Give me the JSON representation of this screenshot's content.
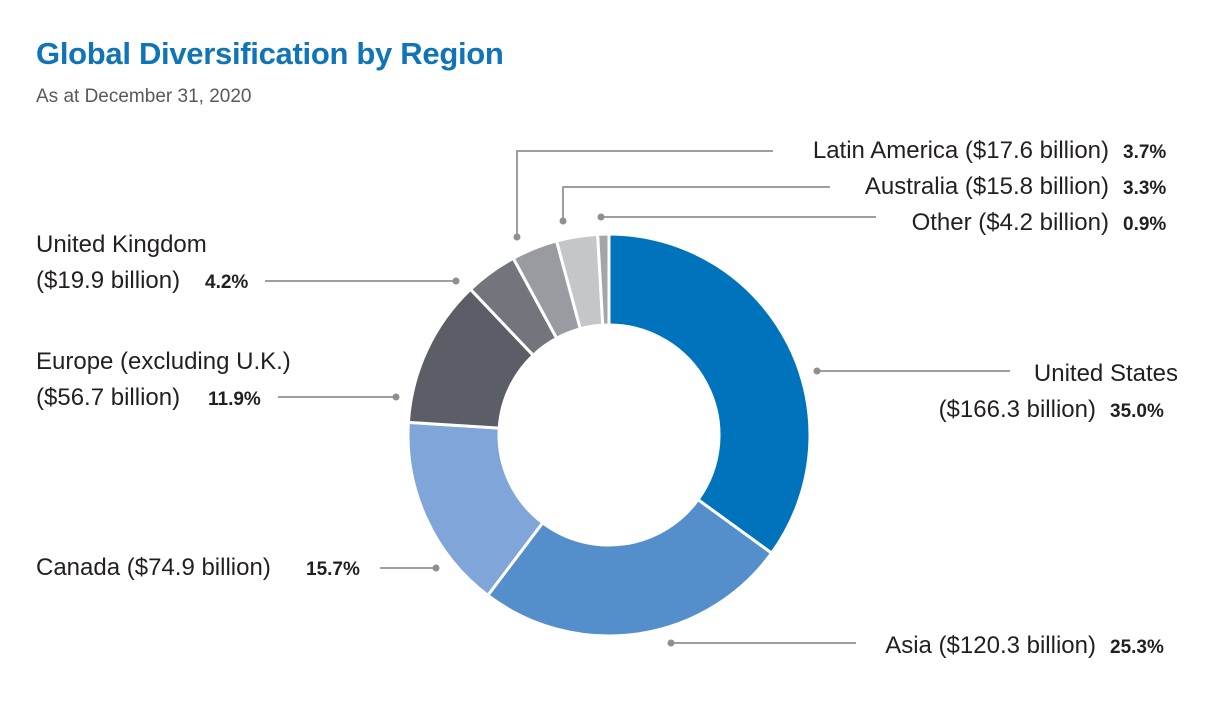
{
  "chart_data": {
    "type": "pie",
    "subtype": "donut",
    "title": "Global Diversification by Region",
    "subtitle": "As at December 31, 2020",
    "slices": [
      {
        "name": "United States",
        "amount_text": "($166.3 billion)",
        "amount_billion": 166.3,
        "percent": 35.0,
        "percent_label": "35.0%",
        "color": "#0073bd"
      },
      {
        "name": "Asia",
        "amount_text": "($120.3 billion)",
        "amount_billion": 120.3,
        "percent": 25.3,
        "percent_label": "25.3%",
        "color": "#548fcc"
      },
      {
        "name": "Canada",
        "amount_text": "($74.9 billion)",
        "amount_billion": 74.9,
        "percent": 15.7,
        "percent_label": "15.7%",
        "color": "#80a6d9"
      },
      {
        "name": "Europe (excluding U.K.)",
        "amount_text": "($56.7 billion)",
        "amount_billion": 56.7,
        "percent": 11.9,
        "percent_label": "11.9%",
        "color": "#5b5e66"
      },
      {
        "name": "United Kingdom",
        "amount_text": "($19.9 billion)",
        "amount_billion": 19.9,
        "percent": 4.2,
        "percent_label": "4.2%",
        "color": "#72757c"
      },
      {
        "name": "Latin America",
        "amount_text": "($17.6 billion)",
        "amount_billion": 17.6,
        "percent": 3.7,
        "percent_label": "3.7%",
        "color": "#999ba1"
      },
      {
        "name": "Australia",
        "amount_text": "($15.8 billion)",
        "amount_billion": 15.8,
        "percent": 3.3,
        "percent_label": "3.3%",
        "color": "#c5c6ca"
      },
      {
        "name": "Other",
        "amount_text": "($4.2 billion)",
        "amount_billion": 4.2,
        "percent": 0.9,
        "percent_label": "0.9%",
        "color": "#a3a5a9"
      }
    ]
  }
}
